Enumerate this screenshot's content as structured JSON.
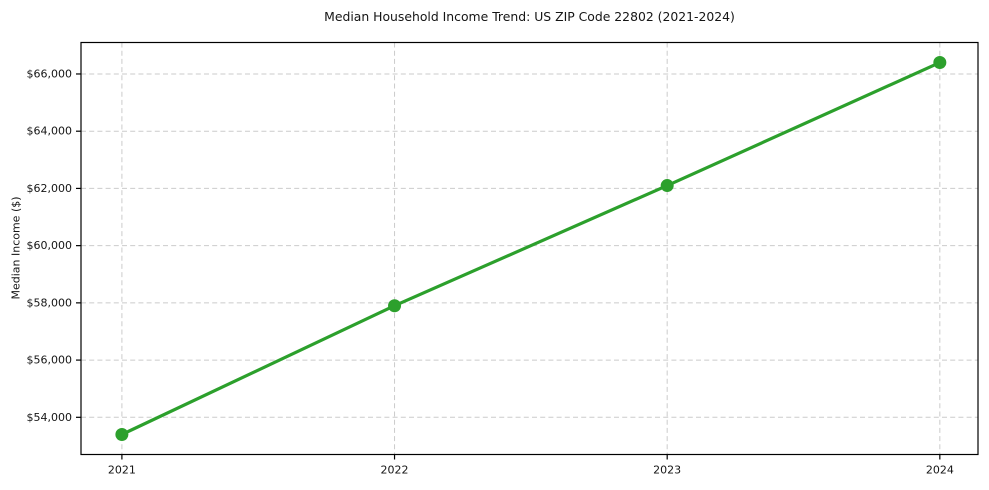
{
  "chart_data": {
    "type": "line",
    "title": "Median Household Income Trend: US ZIP Code 22802 (2021-2024)",
    "xlabel": "",
    "ylabel": "Median Income ($)",
    "x": [
      2021,
      2022,
      2023,
      2024
    ],
    "xtick_labels": [
      "2021",
      "2022",
      "2023",
      "2024"
    ],
    "series": [
      {
        "name": "Median Household Income",
        "values": [
          53400,
          57900,
          62100,
          66400
        ],
        "color": "#2ca02c",
        "marker": "circle"
      }
    ],
    "yticks": [
      54000,
      56000,
      58000,
      60000,
      62000,
      64000,
      66000
    ],
    "ytick_labels": [
      "$54,000",
      "$56,000",
      "$58,000",
      "$60,000",
      "$62,000",
      "$64,000",
      "$66,000"
    ],
    "ylim": [
      52700,
      67100
    ],
    "xlim": [
      2020.85,
      2024.14
    ],
    "grid": true,
    "legend": "none",
    "colors": {
      "line": "#2ca02c",
      "grid": "#cbcbcb",
      "spine": "#000000",
      "text": "#151515",
      "background": "#ffffff"
    },
    "grid_dash": "5,3.2"
  }
}
